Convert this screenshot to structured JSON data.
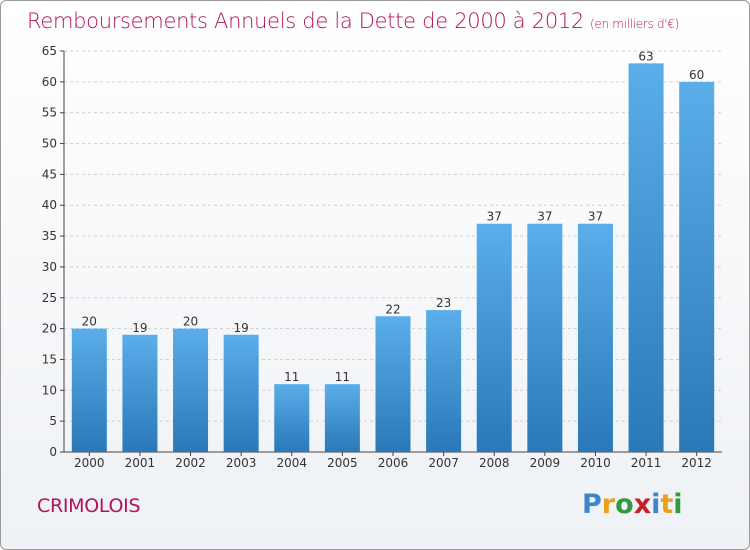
{
  "header": {
    "title": "Remboursements Annuels de la Dette de 2000 à 2012",
    "subtitle": "(en milliers d'€)"
  },
  "footer": {
    "commune": "CRIMOLOIS",
    "logo_text": "Proxiti"
  },
  "colors": {
    "title": "#b2145a",
    "bar_top": "#5aaee9",
    "bar_bottom": "#2a78b8",
    "grid": "#cfcfcf"
  },
  "chart_data": {
    "type": "bar",
    "title": "Remboursements Annuels de la Dette de 2000 à 2012",
    "subtitle": "(en milliers d'€)",
    "categories": [
      "2000",
      "2001",
      "2002",
      "2003",
      "2004",
      "2005",
      "2006",
      "2007",
      "2008",
      "2009",
      "2010",
      "2011",
      "2012"
    ],
    "values": [
      20,
      19,
      20,
      19,
      11,
      11,
      22,
      23,
      37,
      37,
      37,
      63,
      60
    ],
    "ylim": [
      0,
      65
    ],
    "yticks": [
      0,
      5,
      10,
      15,
      20,
      25,
      30,
      35,
      40,
      45,
      50,
      55,
      60,
      65
    ],
    "grid": "horizontal dashed",
    "legend": "none"
  }
}
